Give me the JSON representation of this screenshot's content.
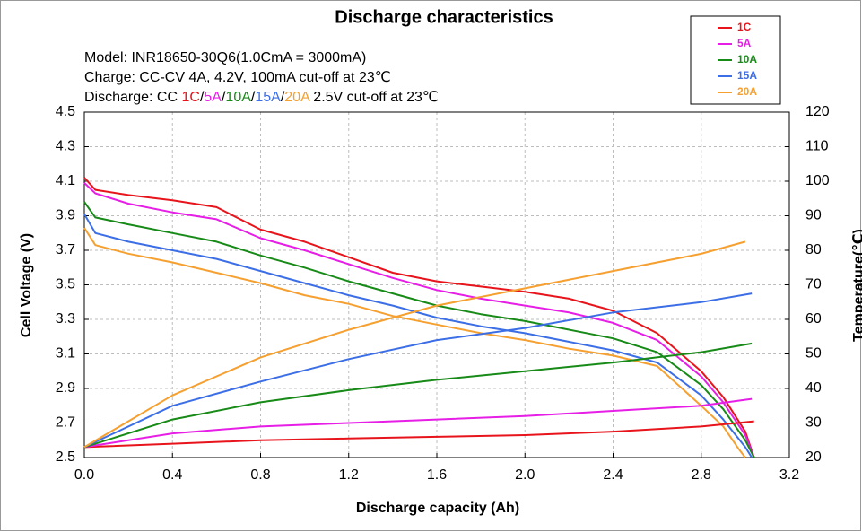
{
  "chart_data": {
    "type": "line",
    "title": "Discharge characteristics",
    "annotations": [
      "Model: INR18650-30Q6(1.0CmA = 3000mA)",
      "Charge: CC-CV 4A, 4.2V, 100mA cut-off at 23℃"
    ],
    "discharge_note": [
      "Discharge: CC ",
      "1C",
      "/",
      "5A",
      "/",
      "10A",
      "/",
      "15A",
      "/",
      "20A",
      " 2.5V cut-off at 23℃"
    ],
    "xlabel": "Discharge capacity (Ah)",
    "ylabel": "Cell Voltage (V)",
    "y2label": "Temperature(℃)",
    "xlim": [
      0,
      3.2
    ],
    "xticks": [
      {
        "value": 0,
        "label": "0.0"
      },
      0.4,
      0.8,
      1.2,
      1.6,
      {
        "value": 2,
        "label": "2.0"
      },
      2.4,
      2.8,
      3.2
    ],
    "ylim": [
      2.5,
      4.5
    ],
    "yticks": [
      2.5,
      2.7,
      2.9,
      3.1,
      3.3,
      3.5,
      3.7,
      3.9,
      4.1,
      4.3,
      4.5
    ],
    "y2lim": [
      20,
      120
    ],
    "y2ticks": [
      20,
      30,
      40,
      50,
      60,
      70,
      80,
      90,
      100,
      110,
      120
    ],
    "grid": true,
    "legend": "upper right",
    "series": [
      {
        "name": "1C",
        "color": "#e8141c",
        "x": [
          0,
          0.05,
          0.2,
          0.4,
          0.6,
          0.8,
          1.0,
          1.2,
          1.4,
          1.6,
          1.8,
          2.0,
          2.2,
          2.4,
          2.6,
          2.8,
          2.9,
          3.0,
          3.04
        ],
        "values": [
          4.12,
          4.05,
          4.02,
          3.99,
          3.95,
          3.82,
          3.75,
          3.66,
          3.57,
          3.52,
          3.49,
          3.46,
          3.42,
          3.35,
          3.22,
          3.0,
          2.85,
          2.65,
          2.5
        ]
      },
      {
        "name": "5A",
        "color": "#e61ee6",
        "x": [
          0,
          0.05,
          0.2,
          0.4,
          0.6,
          0.8,
          1.0,
          1.2,
          1.4,
          1.6,
          1.8,
          2.0,
          2.2,
          2.4,
          2.6,
          2.8,
          2.9,
          3.0,
          3.04
        ],
        "values": [
          4.09,
          4.03,
          3.97,
          3.92,
          3.88,
          3.77,
          3.7,
          3.62,
          3.54,
          3.47,
          3.42,
          3.38,
          3.34,
          3.28,
          3.18,
          2.97,
          2.82,
          2.63,
          2.5
        ]
      },
      {
        "name": "10A",
        "color": "#178a17",
        "x": [
          0,
          0.05,
          0.2,
          0.4,
          0.6,
          0.8,
          1.0,
          1.2,
          1.4,
          1.6,
          1.8,
          2.0,
          2.2,
          2.4,
          2.6,
          2.8,
          2.9,
          3.0,
          3.04
        ],
        "values": [
          3.98,
          3.89,
          3.85,
          3.8,
          3.75,
          3.67,
          3.6,
          3.52,
          3.45,
          3.38,
          3.33,
          3.29,
          3.24,
          3.19,
          3.11,
          2.92,
          2.78,
          2.6,
          2.5
        ]
      },
      {
        "name": "15A",
        "color": "#3c6ee6",
        "x": [
          0,
          0.05,
          0.2,
          0.4,
          0.6,
          0.8,
          1.0,
          1.2,
          1.4,
          1.6,
          1.8,
          2.0,
          2.2,
          2.4,
          2.6,
          2.8,
          2.9,
          3.0,
          3.03
        ],
        "values": [
          3.91,
          3.8,
          3.75,
          3.7,
          3.65,
          3.58,
          3.51,
          3.44,
          3.38,
          3.31,
          3.26,
          3.22,
          3.17,
          3.12,
          3.05,
          2.86,
          2.72,
          2.56,
          2.5
        ]
      },
      {
        "name": "20A",
        "color": "#f5a030",
        "x": [
          0,
          0.05,
          0.2,
          0.4,
          0.6,
          0.8,
          1.0,
          1.2,
          1.4,
          1.6,
          1.8,
          2.0,
          2.2,
          2.4,
          2.6,
          2.8,
          2.9,
          2.97,
          3.0
        ],
        "values": [
          3.83,
          3.73,
          3.68,
          3.63,
          3.57,
          3.51,
          3.44,
          3.39,
          3.32,
          3.27,
          3.22,
          3.18,
          3.13,
          3.09,
          3.03,
          2.8,
          2.68,
          2.55,
          2.5
        ]
      },
      {
        "color": "#e8141c",
        "axis": "y2",
        "x": [
          0,
          0.4,
          0.8,
          1.2,
          1.6,
          2.0,
          2.4,
          2.8,
          3.04
        ],
        "values": [
          23,
          24,
          25,
          25.5,
          26,
          26.5,
          27.5,
          29,
          30.5
        ]
      },
      {
        "color": "#e61ee6",
        "axis": "y2",
        "x": [
          0,
          0.4,
          0.8,
          1.2,
          1.6,
          2.0,
          2.4,
          2.8,
          3.03
        ],
        "values": [
          23,
          27,
          29,
          30,
          31,
          32,
          33.5,
          35,
          37
        ]
      },
      {
        "color": "#178a17",
        "axis": "y2",
        "x": [
          0,
          0.4,
          0.8,
          1.2,
          1.6,
          2.0,
          2.4,
          2.8,
          3.03
        ],
        "values": [
          23,
          31,
          36,
          39.5,
          42.5,
          45,
          47.5,
          50.5,
          53
        ]
      },
      {
        "color": "#3c6ee6",
        "axis": "y2",
        "x": [
          0,
          0.4,
          0.8,
          1.2,
          1.6,
          2.0,
          2.4,
          2.8,
          3.03
        ],
        "values": [
          23,
          35,
          42,
          48.5,
          54,
          57.5,
          62,
          65,
          67.5
        ]
      },
      {
        "color": "#f5a030",
        "axis": "y2",
        "x": [
          0,
          0.4,
          0.8,
          1.2,
          1.6,
          2.0,
          2.4,
          2.8,
          3.0
        ],
        "values": [
          23,
          38,
          49,
          57,
          64,
          69,
          74,
          79,
          82.5
        ]
      }
    ]
  }
}
